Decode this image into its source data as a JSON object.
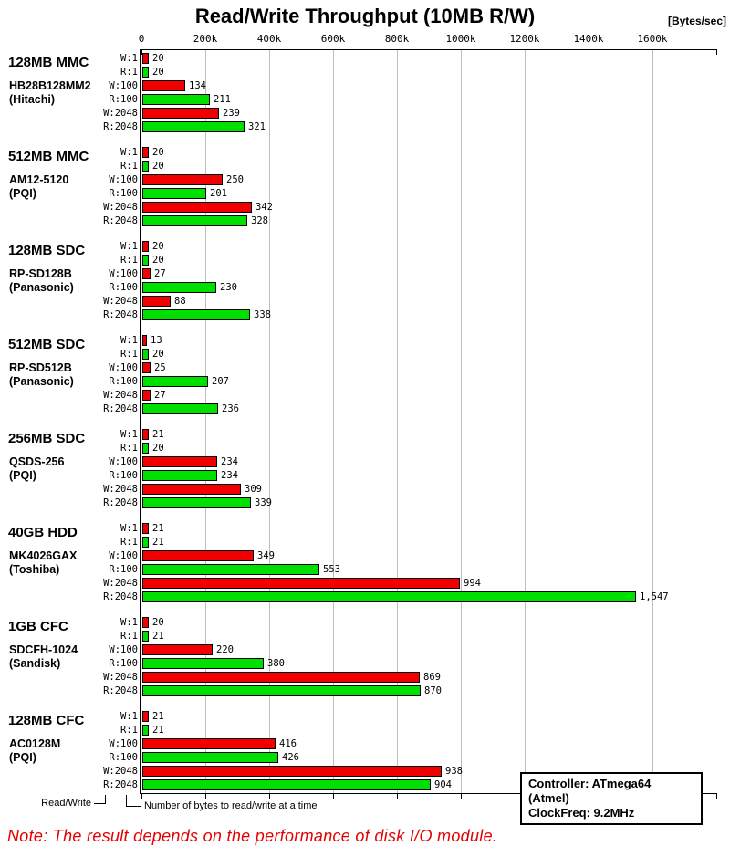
{
  "title": "Read/Write Throughput (10MB R/W)",
  "units_label": "[Bytes/sec]",
  "legend": {
    "read_write": "Read/Write",
    "bytes_desc": "Number of bytes to read/write at a time"
  },
  "info_box": {
    "controller": "Controller: ATmega64 (Atmel)",
    "clock": "ClockFreq: 9.2MHz"
  },
  "note": "Note: The result depends on the performance of disk I/O module.",
  "chart_data": {
    "type": "bar",
    "orientation": "horizontal",
    "title": "Read/Write Throughput (10MB R/W)",
    "xlabel": "[Bytes/sec]",
    "value_unit": "kBytes/sec",
    "axis_ticks": [
      "0",
      "200k",
      "400k",
      "600k",
      "800k",
      "1000k",
      "1200k",
      "1400k",
      "1600k"
    ],
    "axis_tick_values_k": [
      0,
      200,
      400,
      600,
      800,
      1000,
      1200,
      1400,
      1600
    ],
    "xlim_k": [
      0,
      1800
    ],
    "grid": true,
    "bar_labels": [
      "W:1",
      "R:1",
      "W:100",
      "R:100",
      "W:2048",
      "R:2048"
    ],
    "colors": {
      "write": "#f00000",
      "read": "#00e000"
    },
    "groups": [
      {
        "name": "128MB MMC",
        "model": "HB28B128MM2",
        "maker": "(Hitachi)",
        "values_k": [
          20,
          20,
          134,
          211,
          239,
          321
        ]
      },
      {
        "name": "512MB MMC",
        "model": "AM12-5120",
        "maker": "(PQI)",
        "values_k": [
          20,
          20,
          250,
          201,
          342,
          328
        ]
      },
      {
        "name": "128MB SDC",
        "model": "RP-SD128B",
        "maker": "(Panasonic)",
        "values_k": [
          20,
          20,
          27,
          230,
          88,
          338
        ]
      },
      {
        "name": "512MB SDC",
        "model": "RP-SD512B",
        "maker": "(Panasonic)",
        "values_k": [
          13,
          20,
          25,
          207,
          27,
          236
        ]
      },
      {
        "name": "256MB SDC",
        "model": "QSDS-256",
        "maker": "(PQI)",
        "values_k": [
          21,
          20,
          234,
          234,
          309,
          339
        ]
      },
      {
        "name": "40GB HDD",
        "model": "MK4026GAX",
        "maker": "(Toshiba)",
        "values_k": [
          21,
          21,
          349,
          553,
          994,
          1547
        ]
      },
      {
        "name": "1GB CFC",
        "model": "SDCFH-1024",
        "maker": "(Sandisk)",
        "values_k": [
          20,
          21,
          220,
          380,
          869,
          870
        ]
      },
      {
        "name": "128MB CFC",
        "model": "AC0128M",
        "maker": "(PQI)",
        "values_k": [
          21,
          21,
          416,
          426,
          938,
          904
        ]
      }
    ]
  }
}
